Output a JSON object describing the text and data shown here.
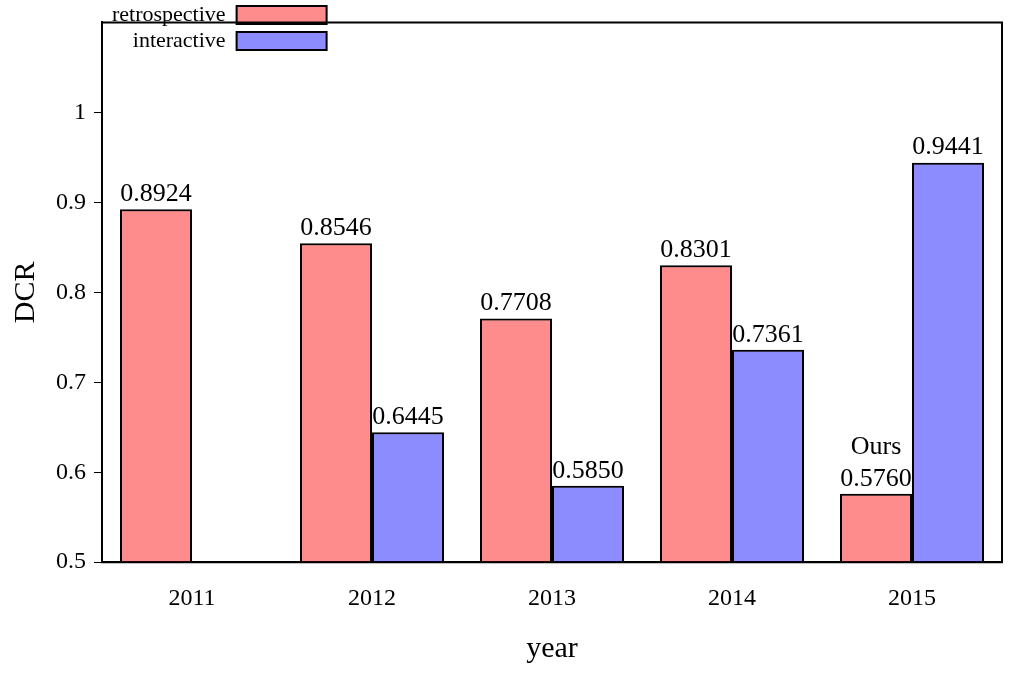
{
  "chart_data": {
    "type": "bar",
    "xlabel": "year",
    "ylabel": "DCR",
    "categories": [
      "2011",
      "2012",
      "2013",
      "2014",
      "2015"
    ],
    "series": [
      {
        "name": "retrospective",
        "color": "#ff0000",
        "values": [
          0.8924,
          0.8546,
          0.7708,
          0.8301,
          0.576
        ]
      },
      {
        "name": "interactive",
        "color": "#0000ff",
        "values": [
          null,
          0.6445,
          0.585,
          0.7361,
          0.9441
        ]
      }
    ],
    "value_labels": [
      [
        "0.8924",
        "0.8546",
        "0.7708",
        "0.8301",
        "0.5760"
      ],
      [
        null,
        "0.6445",
        "0.5850",
        "0.7361",
        "0.9441"
      ]
    ],
    "annotations": [
      {
        "text": "Ours",
        "x": "2015",
        "y": 0.576
      }
    ],
    "ylim": [
      0.5,
      1.1
    ],
    "yticks": [
      0.5,
      0.6,
      0.7,
      0.8,
      0.9,
      1
    ],
    "grid": false,
    "legend": "top left"
  }
}
